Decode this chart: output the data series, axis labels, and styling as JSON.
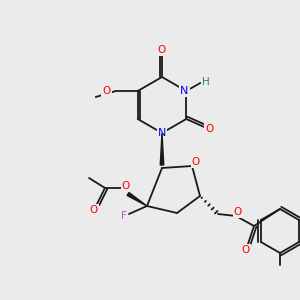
{
  "bg_color": "#ebebeb",
  "bond_color": "#1a1a1a",
  "atom_colors": {
    "O": "#ff0000",
    "N": "#0000ff",
    "F": "#cc44cc",
    "H_N": "#2a8080",
    "C": "#1a1a1a"
  },
  "font_size": 7.5,
  "bond_lw": 1.3
}
